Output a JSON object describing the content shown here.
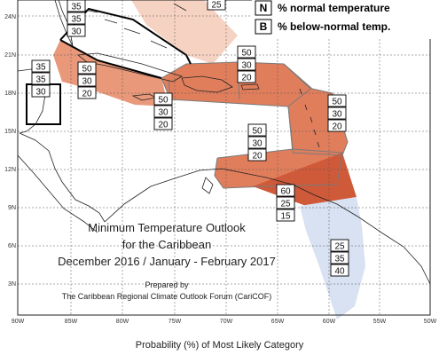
{
  "map": {
    "title_lines": [
      "Minimum Temperature Outlook",
      "for the Caribbean",
      "December 2016 / January - February 2017"
    ],
    "prepared_by": "Prepared by",
    "forum": "The Caribbean Regional Climate Outlook Forum (CariCOF)",
    "caption": "Probability (%) of Most Likely Category",
    "lat_ticks": [
      "24N",
      "21N",
      "18N",
      "15N",
      "12N",
      "9N",
      "6N",
      "3N"
    ],
    "lon_ticks": [
      "90W",
      "85W",
      "80W",
      "75W",
      "70W",
      "65W",
      "60W",
      "55W",
      "50W"
    ]
  },
  "legend": [
    {
      "key": "N",
      "text": "% normal temperature"
    },
    {
      "key": "B",
      "text": "% below-normal temp."
    }
  ],
  "colors": {
    "above_light": "#f6d2c2",
    "above_mid": "#e9987a",
    "above_strong": "#e07e5c",
    "above_dark": "#cf5a3a",
    "below_light": "#d8e2f2",
    "region_border": "#7a7a7a",
    "bold_border": "#000000",
    "land": "#222222",
    "grid": "#555555"
  },
  "probability_boxes": [
    {
      "region": "bahamas-north",
      "values": [
        "35",
        "35",
        "30"
      ]
    },
    {
      "region": "bahamas-south",
      "values": [
        "25"
      ]
    },
    {
      "region": "gulf-mexico",
      "values": [
        "35",
        "35",
        "30"
      ]
    },
    {
      "region": "cuba-jamaica",
      "values": [
        "50",
        "30",
        "20"
      ]
    },
    {
      "region": "hispaniola-pr",
      "values": [
        "50",
        "30",
        "20"
      ]
    },
    {
      "region": "central-caribbean",
      "values": [
        "50",
        "30",
        "20"
      ]
    },
    {
      "region": "lesser-antilles",
      "values": [
        "50",
        "30",
        "20"
      ]
    },
    {
      "region": "southern-caribbean",
      "values": [
        "50",
        "30",
        "20"
      ]
    },
    {
      "region": "trinidad-guyana",
      "values": [
        "60",
        "25",
        "15"
      ]
    },
    {
      "region": "guianas",
      "values": [
        "25",
        "35",
        "40"
      ]
    }
  ]
}
